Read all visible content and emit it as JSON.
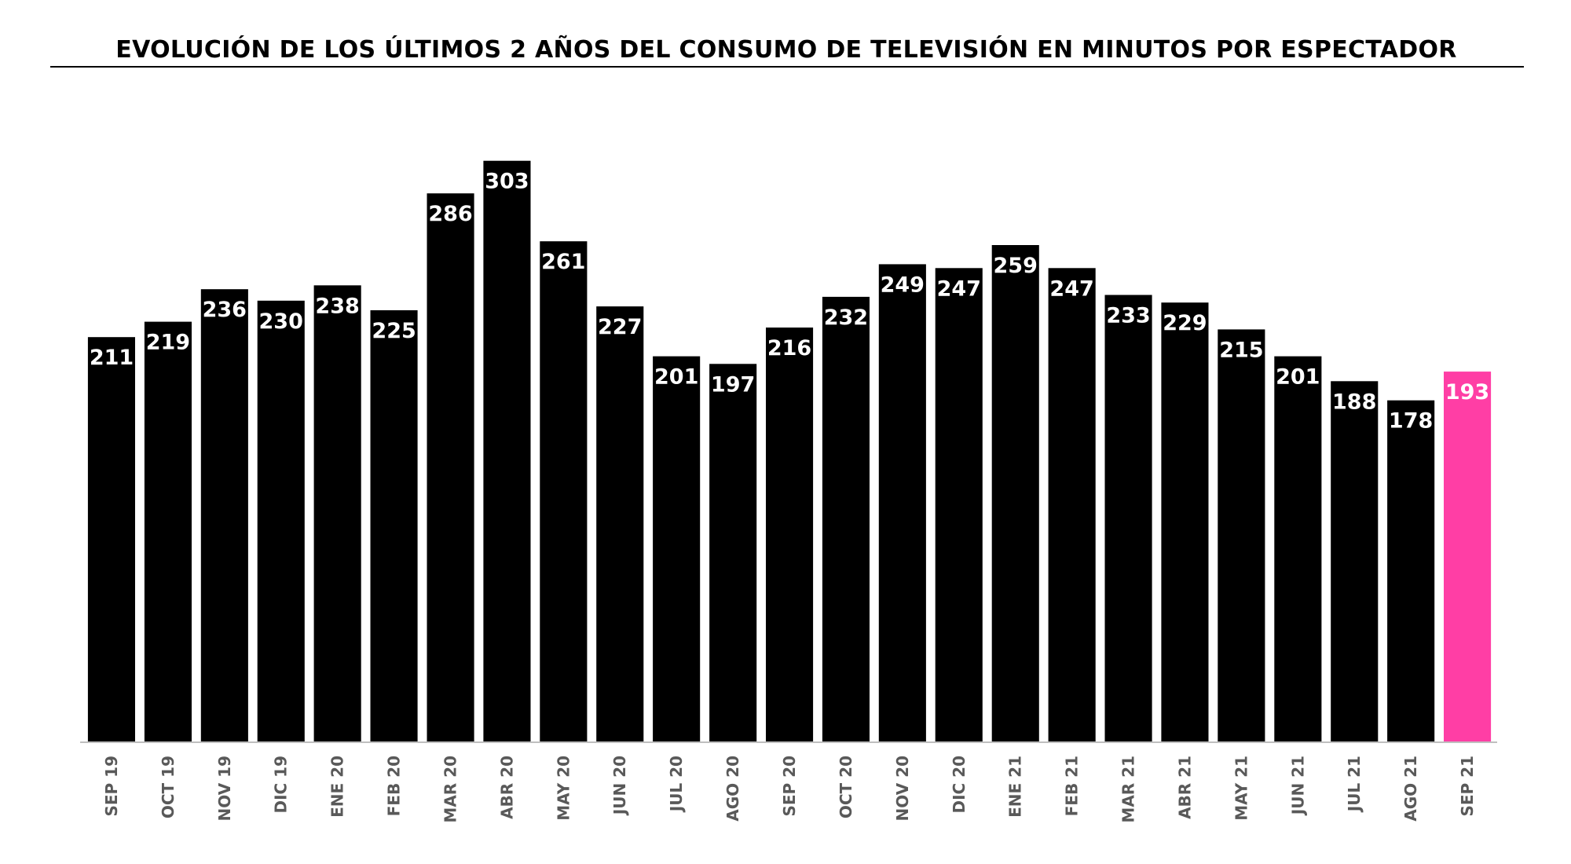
{
  "chart_data": {
    "type": "bar",
    "title": "EVOLUCIÓN DE LOS ÚLTIMOS 2 AÑOS DEL CONSUMO DE TELEVISIÓN EN MINUTOS POR ESPECTADOR",
    "xlabel": "",
    "ylabel": "",
    "categories": [
      "SEP 19",
      "OCT 19",
      "NOV 19",
      "DIC 19",
      "ENE 20",
      "FEB 20",
      "MAR 20",
      "ABR 20",
      "MAY 20",
      "JUN 20",
      "JUL 20",
      "AGO 20",
      "SEP 20",
      "OCT 20",
      "NOV 20",
      "DIC 20",
      "ENE 21",
      "FEB 21",
      "MAR 21",
      "ABR 21",
      "MAY 21",
      "JUN 21",
      "JUL 21",
      "AGO 21",
      "SEP 21"
    ],
    "values": [
      211,
      219,
      236,
      230,
      238,
      225,
      286,
      303,
      261,
      227,
      201,
      197,
      216,
      232,
      249,
      247,
      259,
      247,
      233,
      229,
      215,
      201,
      188,
      178,
      193
    ],
    "ylim": [
      0,
      310
    ],
    "grid": false,
    "legend": "none",
    "data_labels": "inside-top",
    "highlight_category": "SEP 21",
    "colors": {
      "bar": "#000000",
      "highlight": "#ff3ea5",
      "label": "#ffffff",
      "tick": "#595959",
      "baseline": "#bfbfbf"
    }
  }
}
